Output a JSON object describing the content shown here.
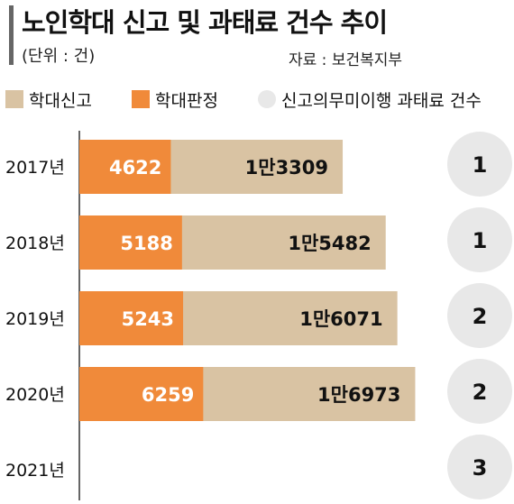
{
  "title": "노인학대 신고 및 과태료 건수 추이",
  "unit": "(단위 : 건)",
  "source": "자료 : 보건복지부",
  "colors": {
    "reports": "#d9c3a3",
    "confirmed": "#f08a3a",
    "fines": "#e8e8e8",
    "title_bar": "#666666"
  },
  "legend": [
    {
      "label": "학대신고",
      "shape": "square"
    },
    {
      "label": "학대판정",
      "shape": "square"
    },
    {
      "label": "신고의무미이행 과태료 건수",
      "shape": "circle"
    }
  ],
  "chart_data": {
    "type": "bar",
    "orientation": "horizontal",
    "categories": [
      "2017년",
      "2018년",
      "2019년",
      "2020년",
      "2021년"
    ],
    "series": [
      {
        "name": "학대신고",
        "values": [
          13309,
          15482,
          16071,
          16973,
          null
        ],
        "labels": [
          "1만3309",
          "1만5482",
          "1만6071",
          "1만6973",
          ""
        ]
      },
      {
        "name": "학대판정",
        "values": [
          4622,
          5188,
          5243,
          6259,
          null
        ],
        "labels": [
          "4622",
          "5188",
          "5243",
          "6259",
          ""
        ]
      },
      {
        "name": "신고의무미이행 과태료 건수",
        "values": [
          1,
          1,
          2,
          2,
          3
        ],
        "labels": [
          "1",
          "1",
          "2",
          "2",
          "3"
        ]
      }
    ],
    "xlim": [
      0,
      17500
    ],
    "grid": false,
    "legend_position": "top"
  }
}
